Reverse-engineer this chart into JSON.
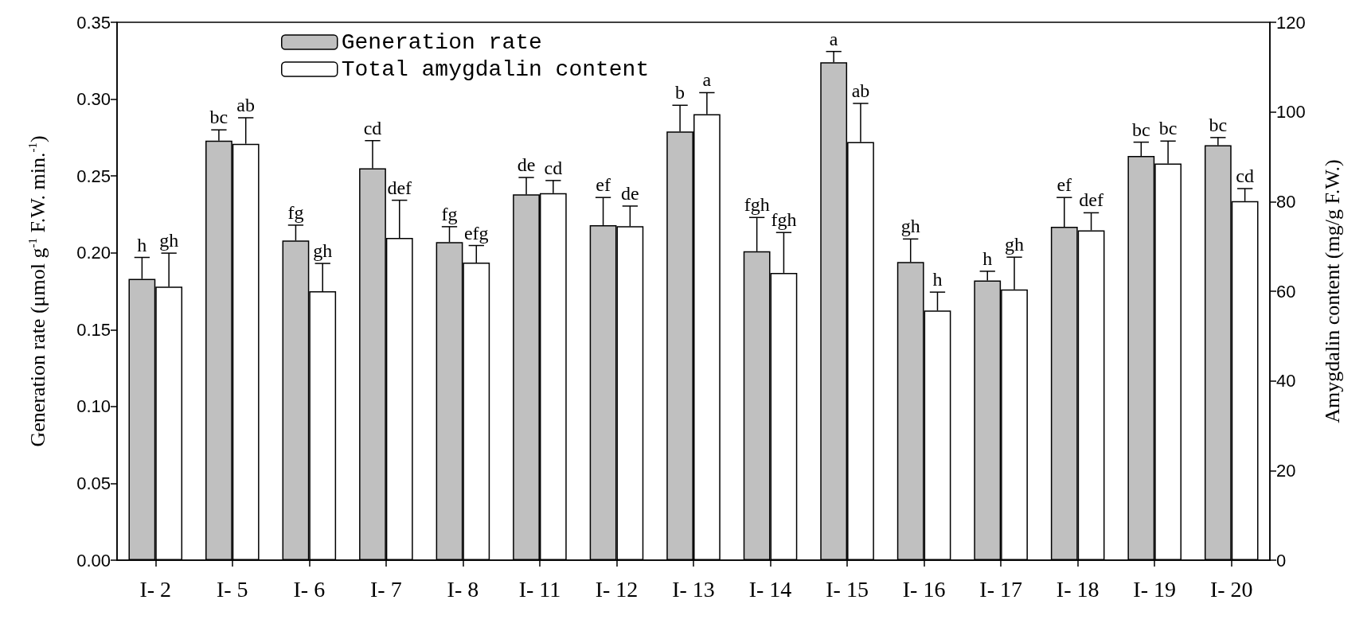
{
  "chart_data": {
    "type": "bar",
    "ylabel": "Generation rate (μmol g$^{-1}$ F.W. min.$^{-1}$)",
    "y2label": "Amygdalin content (mg/g F.W.)",
    "categories": [
      "I- 2",
      "I- 5",
      "I- 6",
      "I- 7",
      "I- 8",
      "I- 11",
      "I- 12",
      "I- 13",
      "I- 14",
      "I- 15",
      "I- 16",
      "I- 17",
      "I- 18",
      "I- 19",
      "I- 20"
    ],
    "series": [
      {
        "name": "Generation rate",
        "color": "#c0c0c0",
        "values": [
          0.183,
          0.273,
          0.208,
          0.255,
          0.207,
          0.238,
          0.218,
          0.279,
          0.201,
          0.324,
          0.194,
          0.182,
          0.217,
          0.263,
          0.27
        ],
        "errors": [
          0.014,
          0.007,
          0.01,
          0.018,
          0.01,
          0.011,
          0.018,
          0.017,
          0.022,
          0.007,
          0.015,
          0.006,
          0.019,
          0.009,
          0.005
        ],
        "value_labels": [
          "h",
          "bc",
          "fg",
          "cd",
          "fg",
          "de",
          "ef",
          "b",
          "fgh",
          "a",
          "gh",
          "h",
          "ef",
          "bc",
          "bc"
        ]
      },
      {
        "name": "Total amygdalin content",
        "color": "#ffffff",
        "axis": "y2",
        "values": [
          61.0,
          92.9,
          60.0,
          71.9,
          66.4,
          81.9,
          74.5,
          99.5,
          64.1,
          93.3,
          55.7,
          60.4,
          73.6,
          88.5,
          80.1
        ],
        "errors": [
          7.5,
          5.8,
          6.2,
          8.4,
          3.8,
          2.8,
          4.5,
          4.8,
          9.0,
          8.6,
          4.1,
          7.2,
          3.9,
          5.0,
          2.8
        ],
        "value_labels": [
          "gh",
          "ab",
          "gh",
          "def",
          "efg",
          "cd",
          "de",
          "a",
          "fgh",
          "ab",
          "h",
          "gh",
          "def",
          "bc",
          "cd"
        ]
      }
    ],
    "ylim": [
      0,
      0.35
    ],
    "yticks": [
      {
        "value": 0,
        "label": "0.00"
      },
      {
        "value": 0.05,
        "label": "0.05"
      },
      {
        "value": 0.1,
        "label": "0.10"
      },
      {
        "value": 0.15,
        "label": "0.15"
      },
      {
        "value": 0.2,
        "label": "0.20"
      },
      {
        "value": 0.25,
        "label": "0.25"
      },
      {
        "value": 0.3,
        "label": "0.30"
      },
      {
        "value": 0.35,
        "label": "0.35"
      }
    ],
    "y2lim": [
      0,
      120
    ],
    "y2ticks": [
      0,
      20,
      40,
      60,
      80,
      100,
      120
    ],
    "legend": "top left",
    "grid": false
  }
}
